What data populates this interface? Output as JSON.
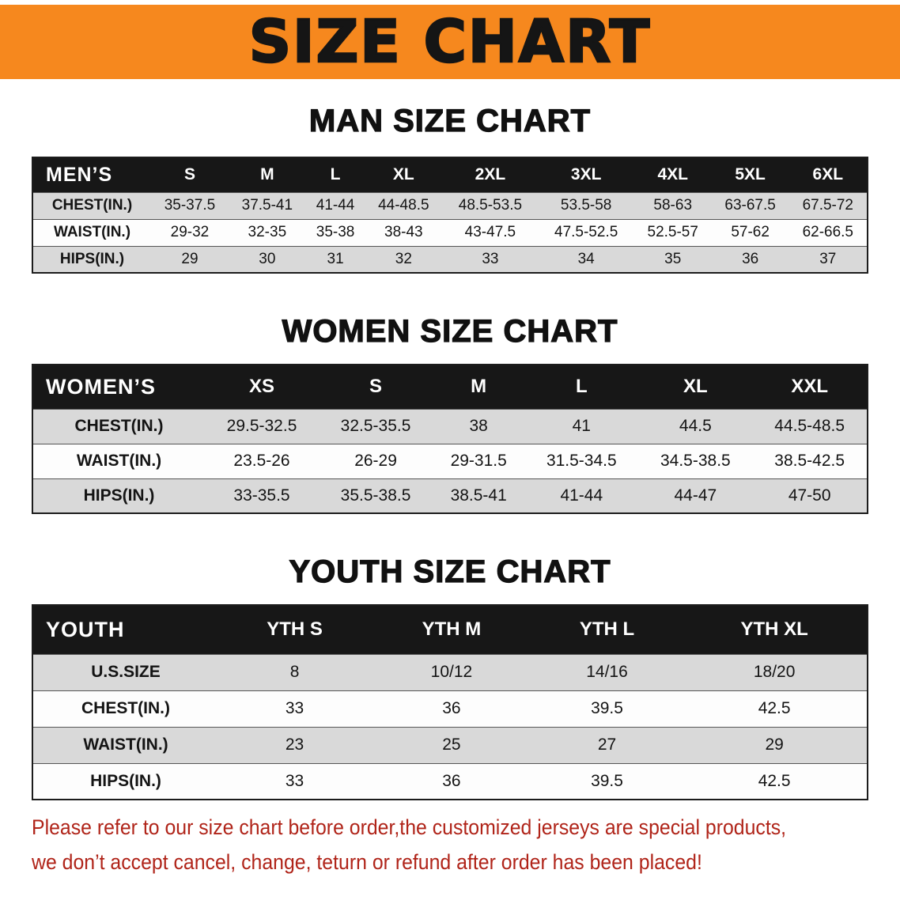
{
  "banner": {
    "title": "SIZE CHART",
    "bg_color": "#F6881E"
  },
  "sections": [
    {
      "id": "men",
      "heading": "MAN SIZE CHART",
      "table": {
        "header": [
          "MEN’S",
          "S",
          "M",
          "L",
          "XL",
          "2XL",
          "3XL",
          "4XL",
          "5XL",
          "6XL"
        ],
        "rows": [
          [
            "CHEST(IN.)",
            "35-37.5",
            "37.5-41",
            "41-44",
            "44-48.5",
            "48.5-53.5",
            "53.5-58",
            "58-63",
            "63-67.5",
            "67.5-72"
          ],
          [
            "WAIST(IN.)",
            "29-32",
            "32-35",
            "35-38",
            "38-43",
            "43-47.5",
            "47.5-52.5",
            "52.5-57",
            "57-62",
            "62-66.5"
          ],
          [
            "HIPS(IN.)",
            "29",
            "30",
            "31",
            "32",
            "33",
            "34",
            "35",
            "36",
            "37"
          ]
        ]
      }
    },
    {
      "id": "women",
      "heading": "WOMEN SIZE CHART",
      "table": {
        "header": [
          "WOMEN’S",
          "XS",
          "S",
          "M",
          "L",
          "XL",
          "XXL"
        ],
        "rows": [
          [
            "CHEST(IN.)",
            "29.5-32.5",
            "32.5-35.5",
            "38",
            "41",
            "44.5",
            "44.5-48.5"
          ],
          [
            "WAIST(IN.)",
            "23.5-26",
            "26-29",
            "29-31.5",
            "31.5-34.5",
            "34.5-38.5",
            "38.5-42.5"
          ],
          [
            "HIPS(IN.)",
            "33-35.5",
            "35.5-38.5",
            "38.5-41",
            "41-44",
            "44-47",
            "47-50"
          ]
        ]
      }
    },
    {
      "id": "youth",
      "heading": "YOUTH SIZE CHART",
      "table": {
        "header": [
          "YOUTH",
          "YTH S",
          "YTH M",
          "YTH L",
          "YTH XL"
        ],
        "rows": [
          [
            "U.S.SIZE",
            "8",
            "10/12",
            "14/16",
            "18/20"
          ],
          [
            "CHEST(IN.)",
            "33",
            "36",
            "39.5",
            "42.5"
          ],
          [
            "WAIST(IN.)",
            "23",
            "25",
            "27",
            "29"
          ],
          [
            "HIPS(IN.)",
            "33",
            "36",
            "39.5",
            "42.5"
          ]
        ]
      }
    }
  ],
  "disclaimer": {
    "color": "#B02419",
    "lines": [
      "Please refer to our size chart before order,the customized jerseys are special products,",
      "we don’t accept cancel, change, teturn or refund after order has been placed!"
    ]
  }
}
